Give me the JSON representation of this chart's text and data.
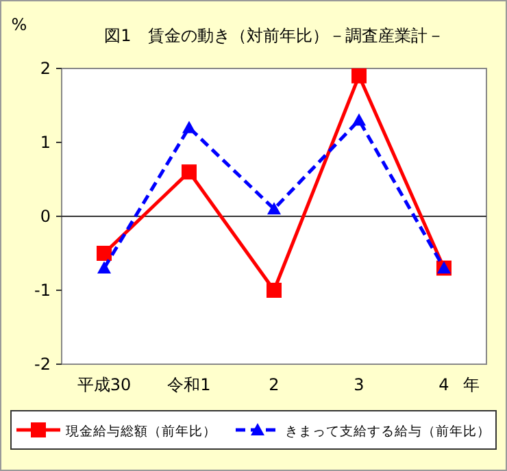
{
  "chart_data": {
    "type": "line",
    "title": "図1　賃金の動き（対前年比）－調査産業計－",
    "xlabel": "年",
    "ylabel": "%",
    "categories": [
      "平成30",
      "令和1",
      "2",
      "3",
      "4"
    ],
    "series": [
      {
        "name": "現金給与総額（前年比）",
        "color": "#ff0000",
        "marker": "square",
        "line_style": "solid",
        "values": [
          -0.5,
          0.6,
          -1.0,
          1.9,
          -0.7
        ]
      },
      {
        "name": "きまって支給する給与（前年比）",
        "color": "#0000ff",
        "marker": "triangle",
        "line_style": "dashed",
        "values": [
          -0.7,
          1.2,
          0.1,
          1.3,
          -0.7
        ]
      }
    ],
    "ylim": [
      -2,
      2
    ],
    "yticks": [
      -2,
      -1,
      0,
      1,
      2
    ],
    "ref_lines": [
      {
        "axis": "y",
        "value": 0,
        "color": "#333333"
      }
    ],
    "legend": "bottom"
  }
}
